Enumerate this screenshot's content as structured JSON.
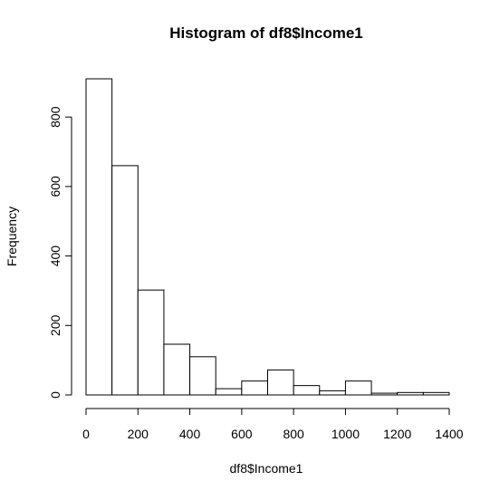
{
  "chart_data": {
    "type": "bar",
    "title": "Histogram of df8$Income1",
    "xlabel": "df8$Income1",
    "ylabel": "Frequency",
    "bin_edges": [
      0,
      100,
      200,
      300,
      400,
      500,
      600,
      700,
      800,
      900,
      1000,
      1100,
      1200,
      1300,
      1400
    ],
    "counts": [
      910,
      660,
      302,
      146,
      110,
      18,
      40,
      72,
      27,
      12,
      40,
      5,
      7,
      7
    ],
    "xlim": [
      0,
      1400
    ],
    "ylim": [
      0,
      910
    ],
    "x_ticks": [
      0,
      200,
      400,
      600,
      800,
      1000,
      1200,
      1400
    ],
    "y_ticks": [
      0,
      200,
      400,
      600,
      800
    ],
    "grid": false,
    "legend": "none"
  }
}
